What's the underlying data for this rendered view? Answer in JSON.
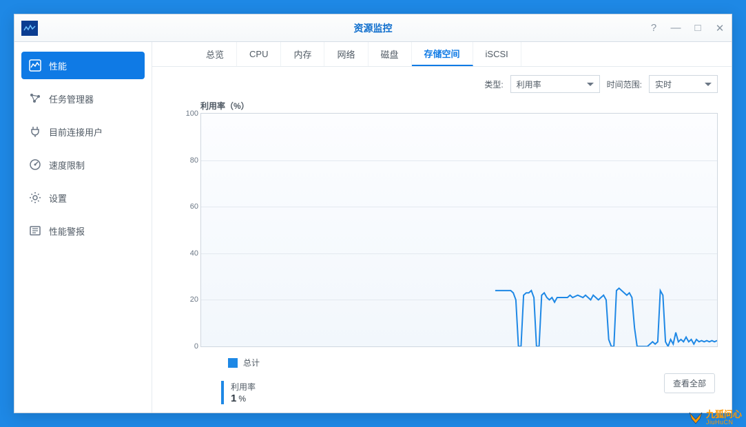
{
  "window": {
    "title": "资源监控",
    "controls": {
      "help": "?",
      "minimize": "—",
      "maximize": "□",
      "close": "✕"
    }
  },
  "sidebar": {
    "items": [
      {
        "label": "性能",
        "icon": "performance-icon",
        "active": true
      },
      {
        "label": "任务管理器",
        "icon": "task-icon",
        "active": false
      },
      {
        "label": "目前连接用户",
        "icon": "plug-icon",
        "active": false
      },
      {
        "label": "速度限制",
        "icon": "gauge-icon",
        "active": false
      },
      {
        "label": "设置",
        "icon": "gear-icon",
        "active": false
      },
      {
        "label": "性能警报",
        "icon": "alert-icon",
        "active": false
      }
    ]
  },
  "tabs": [
    {
      "label": "总览",
      "active": false
    },
    {
      "label": "CPU",
      "active": false
    },
    {
      "label": "内存",
      "active": false
    },
    {
      "label": "网络",
      "active": false
    },
    {
      "label": "磁盘",
      "active": false
    },
    {
      "label": "存储空间",
      "active": true
    },
    {
      "label": "iSCSI",
      "active": false
    }
  ],
  "filters": {
    "type_label": "类型:",
    "type_value": "利用率",
    "range_label": "时间范围:",
    "range_value": "实时"
  },
  "chart": {
    "type": "line",
    "title": "利用率（%）",
    "ylim": [
      0,
      100
    ],
    "yticks": [
      0,
      20,
      40,
      60,
      80,
      100
    ],
    "grid_color": "#e3e9ef",
    "background_top": "#fcfdff",
    "background_bottom": "#f2f7fc",
    "border_color": "#cfd7df",
    "series": [
      {
        "name": "总计",
        "color": "#1e88e5",
        "line_width": 2,
        "x_range": [
          0,
          100
        ],
        "points": [
          [
            57,
            24
          ],
          [
            58,
            24
          ],
          [
            59,
            24
          ],
          [
            60,
            24
          ],
          [
            60.5,
            23
          ],
          [
            61,
            20
          ],
          [
            61.5,
            0
          ],
          [
            62,
            0
          ],
          [
            62.5,
            22
          ],
          [
            63,
            23
          ],
          [
            63.5,
            23
          ],
          [
            64,
            24
          ],
          [
            64.5,
            21
          ],
          [
            65,
            0
          ],
          [
            65.5,
            0
          ],
          [
            66,
            22
          ],
          [
            66.5,
            23
          ],
          [
            67,
            21
          ],
          [
            67.5,
            20
          ],
          [
            68,
            21
          ],
          [
            68.5,
            19
          ],
          [
            69,
            21
          ],
          [
            70,
            21
          ],
          [
            71,
            21
          ],
          [
            71.5,
            22
          ],
          [
            72,
            21
          ],
          [
            73,
            22
          ],
          [
            74,
            21
          ],
          [
            74.5,
            22
          ],
          [
            75,
            21
          ],
          [
            75.5,
            20
          ],
          [
            76,
            22
          ],
          [
            77,
            20
          ],
          [
            78,
            22
          ],
          [
            78.5,
            20
          ],
          [
            79,
            3
          ],
          [
            79.5,
            0
          ],
          [
            80,
            0
          ],
          [
            80.5,
            24
          ],
          [
            81,
            25
          ],
          [
            81.5,
            24
          ],
          [
            82,
            23
          ],
          [
            82.5,
            22
          ],
          [
            83,
            23
          ],
          [
            83.5,
            21
          ],
          [
            84,
            8
          ],
          [
            84.5,
            0
          ],
          [
            85,
            0
          ],
          [
            85.5,
            0
          ],
          [
            86,
            0
          ],
          [
            86.5,
            0
          ],
          [
            87,
            1
          ],
          [
            87.5,
            2
          ],
          [
            88,
            1
          ],
          [
            88.5,
            2
          ],
          [
            89,
            24
          ],
          [
            89.5,
            22
          ],
          [
            90,
            2
          ],
          [
            90.5,
            0
          ],
          [
            91,
            3
          ],
          [
            91.5,
            1
          ],
          [
            92,
            6
          ],
          [
            92.5,
            2
          ],
          [
            93,
            3
          ],
          [
            93.5,
            2
          ],
          [
            94,
            4
          ],
          [
            94.5,
            2
          ],
          [
            95,
            3
          ],
          [
            95.5,
            1
          ],
          [
            96,
            3
          ],
          [
            96.5,
            2
          ],
          [
            97,
            2.5
          ],
          [
            97.5,
            2
          ],
          [
            98,
            2.5
          ],
          [
            98.5,
            2
          ],
          [
            99,
            2.5
          ],
          [
            99.5,
            2
          ],
          [
            100,
            2.5
          ]
        ]
      }
    ],
    "legend_label": "总计"
  },
  "stat": {
    "label": "利用率",
    "value": "1",
    "unit": "%"
  },
  "buttons": {
    "view_all": "查看全部"
  },
  "watermark": {
    "zh": "九狐问心",
    "en": "JiuHuCN"
  }
}
